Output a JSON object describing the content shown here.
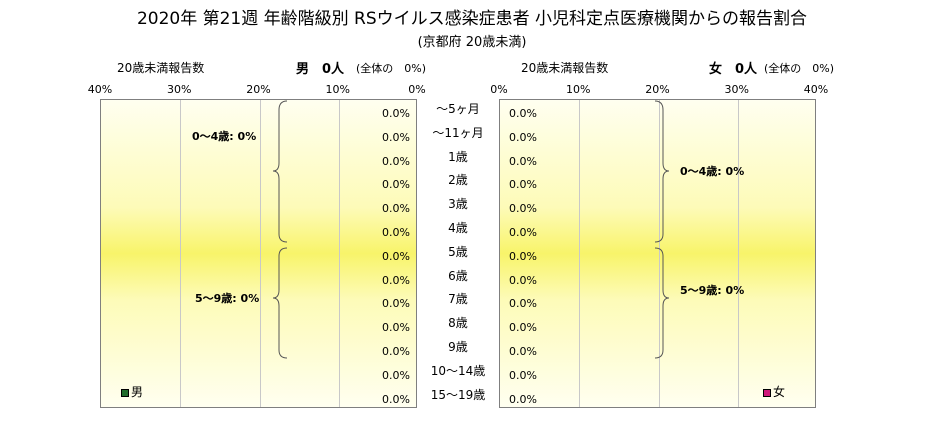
{
  "title": "2020年 第21週 年齢階級別 RSウイルス感染症患者 小児科定点医療機関からの報告割合",
  "subtitle": "(京都府 20歳未満)",
  "male_header": {
    "count_label": "20歳未満報告数",
    "sex_count": "男　0人",
    "share": "(全体の　0%)"
  },
  "female_header": {
    "count_label": "20歳未満報告数",
    "sex_count": "女　0人",
    "share": "(全体の　0%)"
  },
  "male_bracket_labels": [
    "0～4歳: 0%",
    "5～9歳: 0%"
  ],
  "female_bracket_labels": [
    "0～4歳: 0%",
    "5～9歳: 0%"
  ],
  "legend": {
    "male": "男",
    "female": "女",
    "male_color": "#1f6b2a",
    "female_color": "#d0187a"
  },
  "chart_data": {
    "type": "bar",
    "orientation": "horizontal-pyramid",
    "categories": [
      "～5ヶ月",
      "～11ヶ月",
      "1歳",
      "2歳",
      "3歳",
      "4歳",
      "5歳",
      "6歳",
      "7歳",
      "8歳",
      "9歳",
      "10～14歳",
      "15～19歳"
    ],
    "male_ticks": [
      "40%",
      "30%",
      "20%",
      "10%",
      "0%"
    ],
    "female_ticks": [
      "0%",
      "10%",
      "20%",
      "30%",
      "40%"
    ],
    "xlim": [
      0,
      40
    ],
    "series": [
      {
        "name": "男",
        "values": [
          0,
          0,
          0,
          0,
          0,
          0,
          0,
          0,
          0,
          0,
          0,
          0,
          0
        ],
        "labels": [
          "0.0%",
          "0.0%",
          "0.0%",
          "0.0%",
          "0.0%",
          "0.0%",
          "0.0%",
          "0.0%",
          "0.0%",
          "0.0%",
          "0.0%",
          "0.0%",
          "0.0%"
        ]
      },
      {
        "name": "女",
        "values": [
          0,
          0,
          0,
          0,
          0,
          0,
          0,
          0,
          0,
          0,
          0,
          0,
          0
        ],
        "labels": [
          "0.0%",
          "0.0%",
          "0.0%",
          "0.0%",
          "0.0%",
          "0.0%",
          "0.0%",
          "0.0%",
          "0.0%",
          "0.0%",
          "0.0%",
          "0.0%",
          "0.0%"
        ]
      }
    ]
  }
}
